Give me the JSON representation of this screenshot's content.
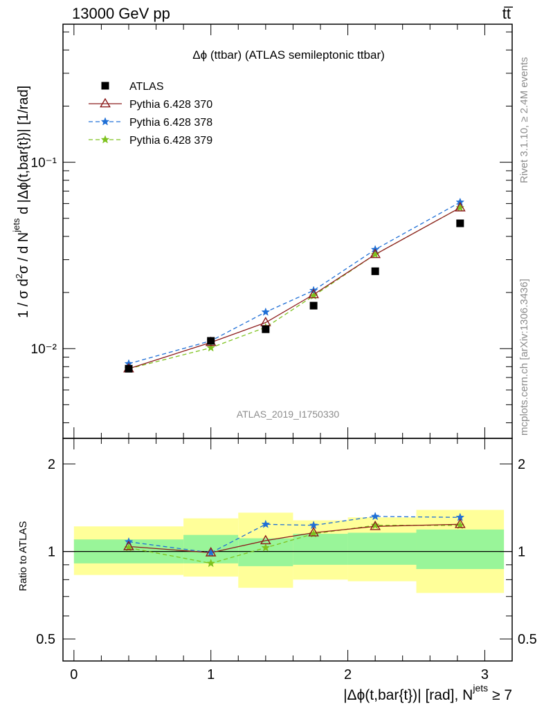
{
  "header": {
    "left": "13000 GeV pp",
    "right": "tt̅"
  },
  "side_labels": {
    "rivet": "Rivet 3.1.10, ≥ 2.4M events",
    "source": "mcplots.cern.ch [arXiv:1306.3436]"
  },
  "chart_data": {
    "type": "line",
    "title": "Δϕ (ttbar) (ATLAS semileptonic ttbar)",
    "watermark": "ATLAS_2019_I1750330",
    "xlabel": "|Δϕ(t,bar{t})| [rad], N^jets ≥ 7",
    "xlabel_parts": {
      "main": "|Δϕ(t,bar{t})| [rad], N",
      "sup": "jets",
      "tail": " ≥ 7"
    },
    "ylabel": "1 / σ d²σ / d N^jets d |Δϕ(t,bar{t})| [1/rad]",
    "ratio_ylabel": "Ratio to ATLAS",
    "xlim": [
      -0.08,
      3.2
    ],
    "ylim": [
      0.0033,
      0.55
    ],
    "yscale": "log",
    "ratio_ylim": [
      0.42,
      2.45
    ],
    "ratio_yscale": "log",
    "x_ticks": [
      0,
      1,
      2,
      3
    ],
    "y_tick_labels": [
      "10⁻²",
      "10⁻¹"
    ],
    "ratio_tick_labels": [
      "0.5",
      "1",
      "2"
    ],
    "legend_position": "top-left",
    "bins": [
      [
        0,
        0.8
      ],
      [
        0.8,
        1.2
      ],
      [
        1.2,
        1.6
      ],
      [
        1.6,
        2.0
      ],
      [
        2.0,
        2.5
      ],
      [
        2.5,
        3.14
      ]
    ],
    "x": [
      0.4,
      1.0,
      1.4,
      1.75,
      2.2,
      2.82
    ],
    "series": [
      {
        "name": "ATLAS",
        "color": "#000000",
        "marker": "square",
        "values": [
          0.0078,
          0.011,
          0.0127,
          0.017,
          0.026,
          0.047
        ]
      },
      {
        "name": "Pythia 6.428 370",
        "color": "#8b1a1a",
        "marker": "triangle-open",
        "dash": "solid",
        "values": [
          0.0078,
          0.0108,
          0.0138,
          0.0195,
          0.032,
          0.057
        ],
        "ratio": [
          1.04,
          0.99,
          1.09,
          1.16,
          1.22,
          1.24
        ]
      },
      {
        "name": "Pythia 6.428 378",
        "color": "#1f6fd6",
        "marker": "star",
        "dash": "dashed",
        "values": [
          0.0083,
          0.011,
          0.0157,
          0.0205,
          0.034,
          0.061
        ],
        "ratio": [
          1.08,
          0.99,
          1.24,
          1.23,
          1.32,
          1.31
        ]
      },
      {
        "name": "Pythia 6.428 379",
        "color": "#7ec21e",
        "marker": "star",
        "dash": "dashed",
        "values": [
          0.0078,
          0.0101,
          0.013,
          0.0192,
          0.032,
          0.057
        ],
        "ratio": [
          1.03,
          0.91,
          1.03,
          1.15,
          1.23,
          1.23
        ]
      }
    ],
    "uncertainty_bands": {
      "inner_color": "#99f599",
      "outer_color": "#ffff99",
      "inner": [
        [
          0.91,
          1.1
        ],
        [
          0.91,
          1.14
        ],
        [
          0.89,
          1.11
        ],
        [
          0.9,
          1.15
        ],
        [
          0.9,
          1.16
        ],
        [
          0.87,
          1.19
        ]
      ],
      "outer": [
        [
          0.83,
          1.22
        ],
        [
          0.82,
          1.3
        ],
        [
          0.75,
          1.36
        ],
        [
          0.8,
          1.28
        ],
        [
          0.79,
          1.31
        ],
        [
          0.72,
          1.39
        ]
      ]
    }
  }
}
